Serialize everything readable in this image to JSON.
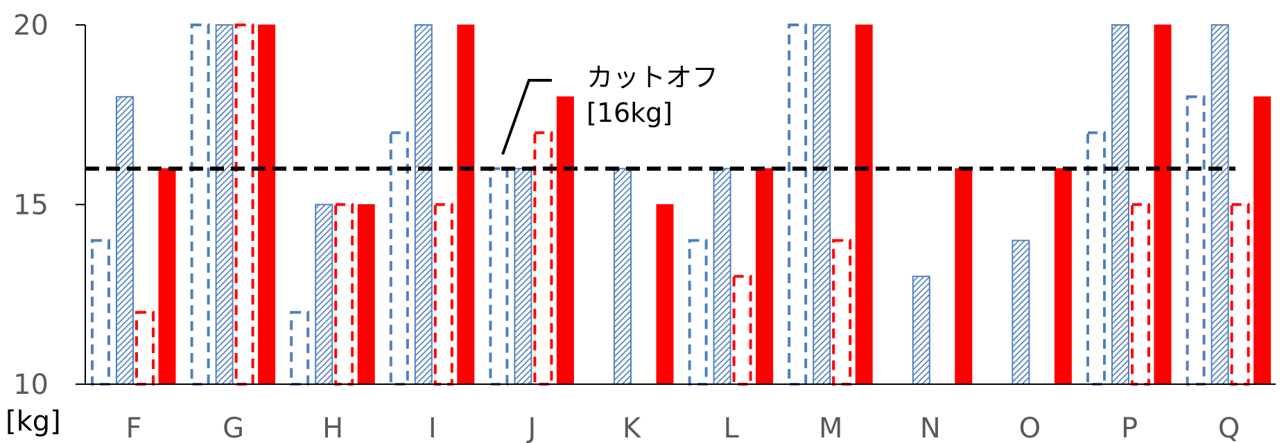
{
  "colors": {
    "blue": "#4f81bd",
    "red": "#ff0000",
    "axis": "#000000",
    "cutoff": "#000000",
    "text": "#595959"
  },
  "chart_data": {
    "type": "bar",
    "categories": [
      "F",
      "G",
      "H",
      "I",
      "J",
      "K",
      "L",
      "M",
      "N",
      "O",
      "P",
      "Q"
    ],
    "ylim": [
      10,
      20
    ],
    "yticks": [
      10,
      15,
      20
    ],
    "unit_label": "[kg]",
    "series": [
      {
        "style": "blue-dashed-outline",
        "values": [
          14,
          20,
          12,
          17,
          16,
          10,
          14,
          20,
          10,
          10,
          17,
          18
        ]
      },
      {
        "style": "blue-hatched",
        "values": [
          18,
          20,
          15,
          20,
          16,
          16,
          16,
          20,
          13,
          14,
          20,
          20
        ]
      },
      {
        "style": "red-dashed-outline",
        "values": [
          12,
          20,
          15,
          15,
          17,
          10,
          13,
          14,
          10,
          10,
          15,
          15
        ]
      },
      {
        "style": "red-solid",
        "values": [
          16,
          20,
          15,
          20,
          18,
          15,
          16,
          20,
          16,
          16,
          20,
          18
        ]
      }
    ],
    "cutoff": {
      "value": 16,
      "label_line1": "カットオフ",
      "label_line2": "[16kg]"
    }
  }
}
